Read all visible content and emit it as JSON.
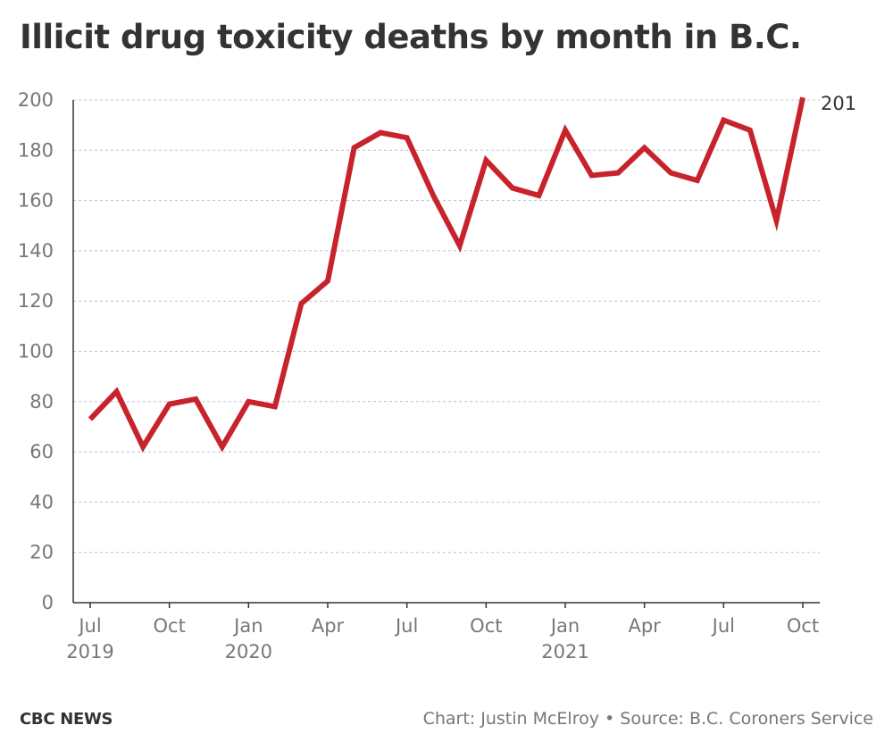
{
  "header": {
    "title": "Illicit drug toxicity deaths by month in B.C."
  },
  "footer": {
    "brand": "CBC NEWS",
    "credit": "Chart: Justin McElroy • Source: B.C. Coroners Service"
  },
  "colors": {
    "line": "#c8232c",
    "grid": "#b8c4d0",
    "axis": "#333333",
    "tick_text": "#777777"
  },
  "chart_data": {
    "type": "line",
    "title": "Illicit drug toxicity deaths by month in B.C.",
    "x": [
      "2019-07",
      "2019-08",
      "2019-09",
      "2019-10",
      "2019-11",
      "2019-12",
      "2020-01",
      "2020-02",
      "2020-03",
      "2020-04",
      "2020-05",
      "2020-06",
      "2020-07",
      "2020-08",
      "2020-09",
      "2020-10",
      "2020-11",
      "2020-12",
      "2021-01",
      "2021-02",
      "2021-03",
      "2021-04",
      "2021-05",
      "2021-06",
      "2021-07",
      "2021-08",
      "2021-09",
      "2021-10"
    ],
    "values": [
      73,
      84,
      62,
      79,
      81,
      62,
      80,
      78,
      119,
      128,
      181,
      187,
      185,
      162,
      142,
      176,
      165,
      162,
      188,
      170,
      171,
      181,
      171,
      168,
      192,
      188,
      152,
      201
    ],
    "ylim": [
      0,
      200
    ],
    "yticks": [
      0,
      20,
      40,
      60,
      80,
      100,
      120,
      140,
      160,
      180,
      200
    ],
    "xticks": [
      {
        "month": "2019-07",
        "label": "Jul",
        "year": "2019"
      },
      {
        "month": "2019-10",
        "label": "Oct",
        "year": ""
      },
      {
        "month": "2020-01",
        "label": "Jan",
        "year": "2020"
      },
      {
        "month": "2020-04",
        "label": "Apr",
        "year": ""
      },
      {
        "month": "2020-07",
        "label": "Jul",
        "year": ""
      },
      {
        "month": "2020-10",
        "label": "Oct",
        "year": ""
      },
      {
        "month": "2021-01",
        "label": "Jan",
        "year": "2021"
      },
      {
        "month": "2021-04",
        "label": "Apr",
        "year": ""
      },
      {
        "month": "2021-07",
        "label": "Jul",
        "year": ""
      },
      {
        "month": "2021-10",
        "label": "Oct",
        "year": ""
      }
    ],
    "end_label": "201",
    "grid": true,
    "legend": "none"
  }
}
